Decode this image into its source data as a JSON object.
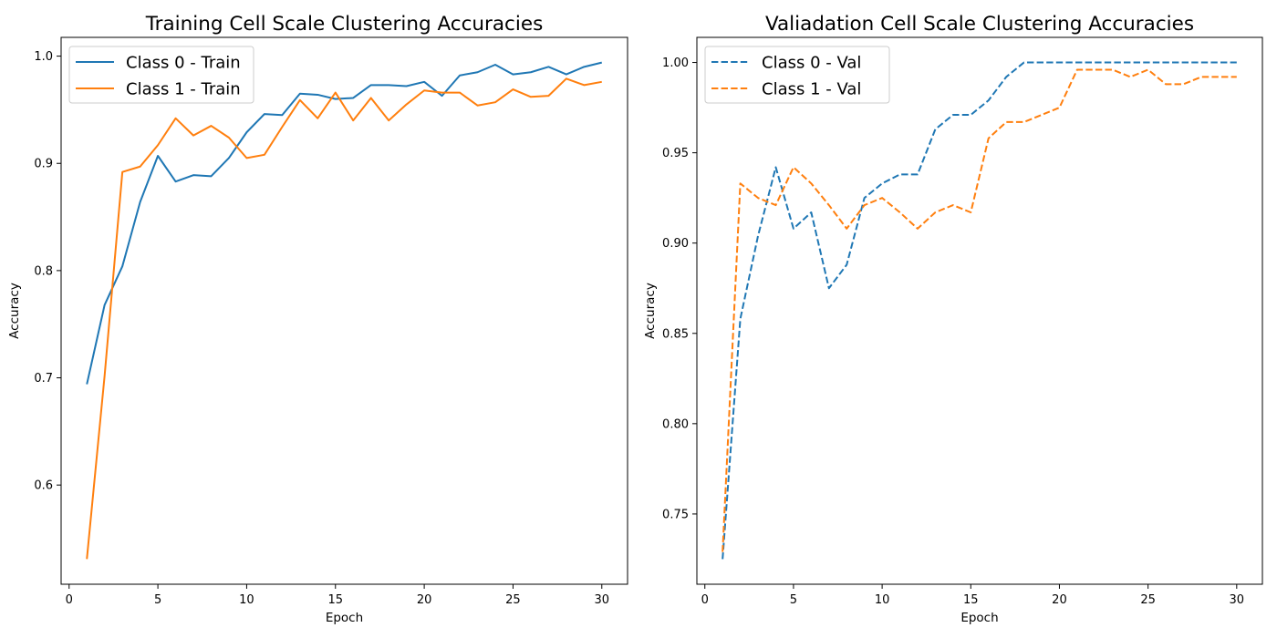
{
  "chart_data": [
    {
      "type": "line",
      "title": "Training Cell Scale Clustering Accuracies",
      "xlabel": "Epoch",
      "ylabel": "Accuracy",
      "xlim": [
        -0.45,
        31.45
      ],
      "ylim": [
        0.5075,
        1.0175
      ],
      "xticks": [
        0,
        5,
        10,
        15,
        20,
        25,
        30
      ],
      "yticks": [
        0.6,
        0.7,
        0.8,
        0.9,
        1.0
      ],
      "ytick_decimals": 1,
      "grid": false,
      "legend_position": "upper-left",
      "x": [
        1,
        2,
        3,
        4,
        5,
        6,
        7,
        8,
        9,
        10,
        11,
        12,
        13,
        14,
        15,
        16,
        17,
        18,
        19,
        20,
        21,
        22,
        23,
        24,
        25,
        26,
        27,
        28,
        29,
        30
      ],
      "series": [
        {
          "name": "Class 0 - Train",
          "color": "#1f77b4",
          "dashed": false,
          "values": [
            0.694,
            0.768,
            0.804,
            0.864,
            0.907,
            0.883,
            0.889,
            0.888,
            0.905,
            0.929,
            0.946,
            0.945,
            0.965,
            0.964,
            0.96,
            0.961,
            0.973,
            0.973,
            0.972,
            0.976,
            0.963,
            0.982,
            0.985,
            0.992,
            0.983,
            0.985,
            0.99,
            0.983,
            0.99,
            0.994
          ]
        },
        {
          "name": "Class 1 - Train",
          "color": "#ff7f0e",
          "dashed": false,
          "values": [
            0.531,
            0.702,
            0.892,
            0.897,
            0.917,
            0.942,
            0.926,
            0.935,
            0.924,
            0.905,
            0.908,
            0.934,
            0.959,
            0.942,
            0.966,
            0.94,
            0.961,
            0.94,
            0.955,
            0.968,
            0.966,
            0.966,
            0.954,
            0.957,
            0.969,
            0.962,
            0.963,
            0.979,
            0.973,
            0.976
          ]
        }
      ]
    },
    {
      "type": "line",
      "title": "Valiadation Cell Scale Clustering Accuracies",
      "xlabel": "Epoch",
      "ylabel": "Accuracy",
      "xlim": [
        -0.45,
        31.45
      ],
      "ylim": [
        0.7111,
        1.0139
      ],
      "xticks": [
        0,
        5,
        10,
        15,
        20,
        25,
        30
      ],
      "yticks": [
        0.75,
        0.8,
        0.85,
        0.9,
        0.95,
        1.0
      ],
      "ytick_decimals": 2,
      "grid": false,
      "legend_position": "upper-left",
      "x": [
        1,
        2,
        3,
        4,
        5,
        6,
        7,
        8,
        9,
        10,
        11,
        12,
        13,
        14,
        15,
        16,
        17,
        18,
        19,
        20,
        21,
        22,
        23,
        24,
        25,
        26,
        27,
        28,
        29,
        30
      ],
      "series": [
        {
          "name": "Class 0 - Val",
          "color": "#1f77b4",
          "dashed": true,
          "values": [
            0.725,
            0.858,
            0.904,
            0.942,
            0.908,
            0.917,
            0.875,
            0.888,
            0.925,
            0.933,
            0.938,
            0.938,
            0.963,
            0.971,
            0.971,
            0.979,
            0.992,
            1.0,
            1.0,
            1.0,
            1.0,
            1.0,
            1.0,
            1.0,
            1.0,
            1.0,
            1.0,
            1.0,
            1.0,
            1.0
          ]
        },
        {
          "name": "Class 1 - Val",
          "color": "#ff7f0e",
          "dashed": true,
          "values": [
            0.729,
            0.933,
            0.925,
            0.921,
            0.942,
            0.933,
            0.921,
            0.908,
            0.921,
            0.925,
            0.917,
            0.908,
            0.917,
            0.921,
            0.917,
            0.958,
            0.967,
            0.967,
            0.971,
            0.975,
            0.996,
            0.996,
            0.996,
            0.992,
            0.996,
            0.988,
            0.988,
            0.992,
            0.992,
            0.992
          ]
        }
      ]
    }
  ]
}
